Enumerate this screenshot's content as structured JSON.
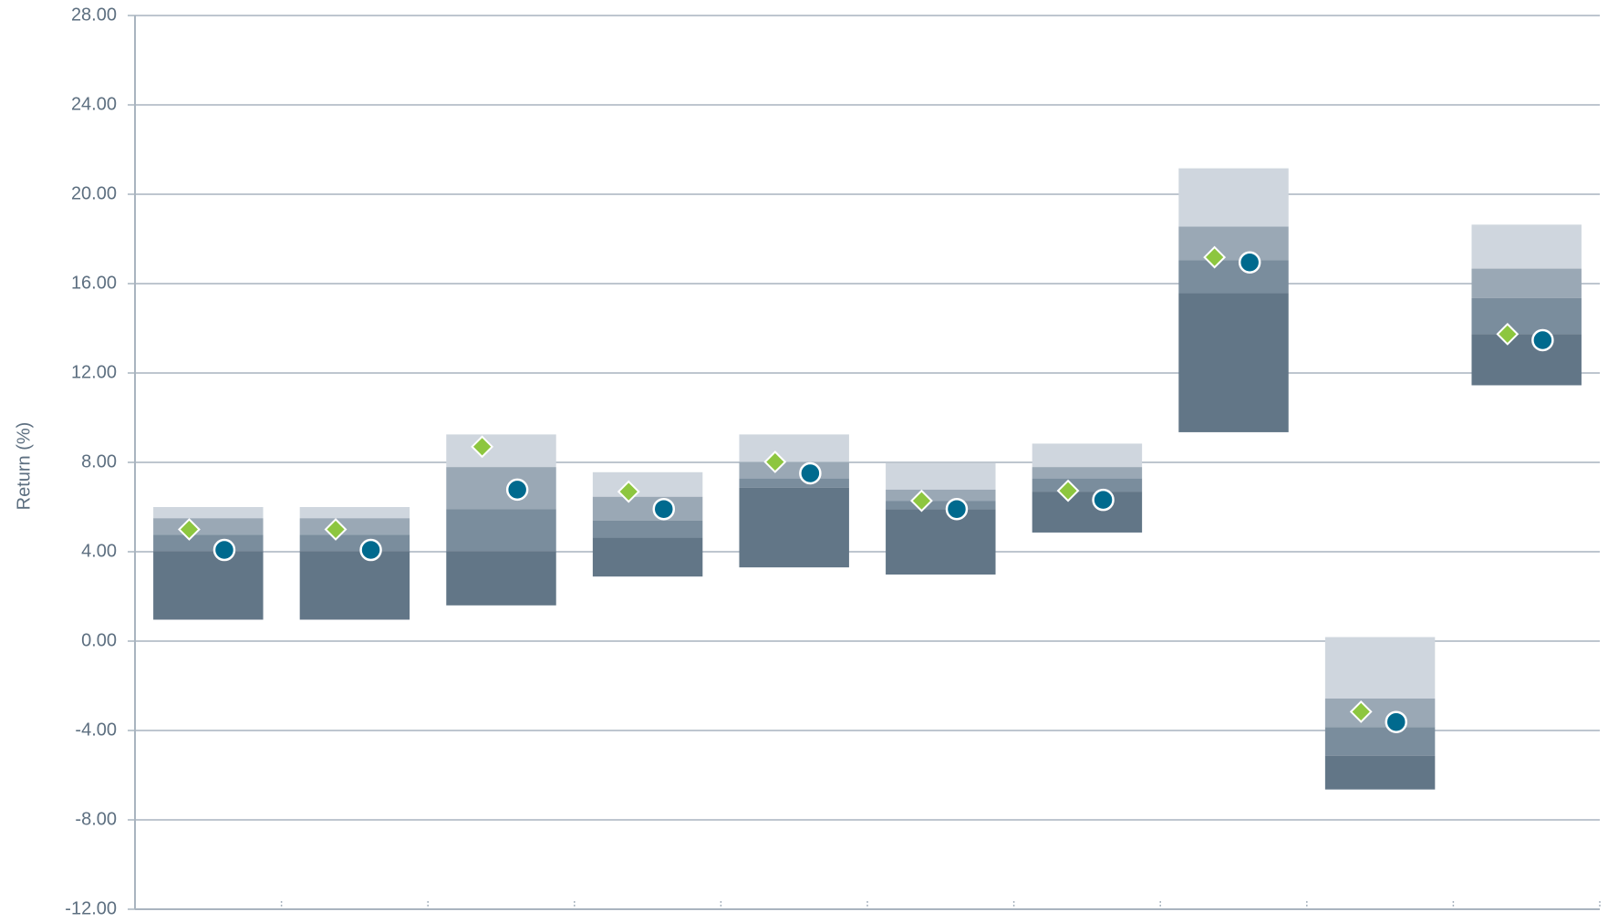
{
  "chart_data": {
    "type": "floating_bar",
    "y_label": "Return (%)",
    "categories": [
      null,
      null,
      null,
      null,
      null,
      null,
      null,
      null,
      null,
      null
    ],
    "bands": {
      "high": [
        6.0,
        6.0,
        9.25,
        7.56,
        9.25,
        7.97,
        8.84,
        21.16,
        0.18,
        18.64
      ],
      "upper": [
        5.5,
        5.5,
        7.79,
        6.46,
        8.02,
        6.78,
        7.79,
        18.55,
        -2.57,
        16.67
      ],
      "median": [
        4.76,
        4.76,
        5.91,
        5.4,
        7.28,
        6.28,
        7.28,
        17.04,
        -3.85,
        15.35
      ],
      "lower": [
        4.03,
        4.03,
        4.03,
        4.63,
        6.87,
        5.91,
        6.69,
        15.57,
        -5.13,
        13.74
      ],
      "low": [
        0.96,
        0.96,
        1.6,
        2.89,
        3.3,
        2.98,
        4.86,
        9.35,
        -6.64,
        11.45
      ]
    },
    "band_colors": [
      "#cfd6de",
      "#9aa8b5",
      "#7a8d9d",
      "#627687"
    ],
    "series": [
      {
        "marker": "diamond",
        "color": "#8dc63f",
        "values": [
          5.0,
          5.0,
          8.7,
          6.69,
          8.02,
          6.28,
          6.73,
          17.18,
          -3.16,
          13.74
        ]
      },
      {
        "marker": "circle",
        "color": "#006a8e",
        "values": [
          4.08,
          4.08,
          6.78,
          5.91,
          7.51,
          5.91,
          6.32,
          16.95,
          -3.62,
          13.47
        ]
      }
    ],
    "ylim": [
      -12,
      28
    ],
    "yticks": [
      {
        "value": -12,
        "label": "-12.00"
      },
      {
        "value": -8,
        "label": "-8.00"
      },
      {
        "value": -4,
        "label": "-4.00"
      },
      {
        "value": 0,
        "label": "0.00"
      },
      {
        "value": 4,
        "label": "4.00"
      },
      {
        "value": 8,
        "label": "8.00"
      },
      {
        "value": 12,
        "label": "12.00"
      },
      {
        "value": 16,
        "label": "16.00"
      },
      {
        "value": 20,
        "label": "20.00"
      },
      {
        "value": 24,
        "label": "24.00"
      },
      {
        "value": 28,
        "label": "28.00"
      }
    ],
    "grid": true
  }
}
